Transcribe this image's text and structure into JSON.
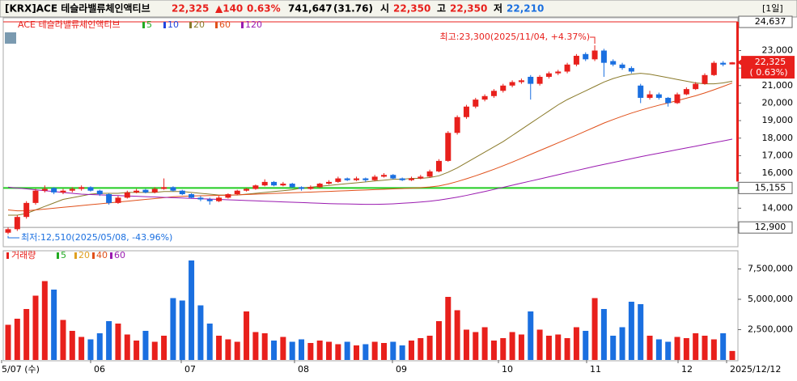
{
  "header": {
    "symbol": "[KRX]ACE 테슬라밸류체인액티브",
    "price": "22,325",
    "change": "▲140",
    "change_pct": "0.63%",
    "volume": "741,647",
    "volume_ratio": "(31.76)",
    "open_label": "시",
    "open": "22,350",
    "high_label": "고",
    "high": "22,350",
    "low_label": "저",
    "low": "22,210",
    "period": "[1일]"
  },
  "chart_data": {
    "type": "candlestick",
    "title": "ACE 테슬라밸류체인액티브",
    "up_color": "#e8201c",
    "down_color": "#1a6fe0",
    "ylim": [
      11800,
      24870
    ],
    "yticks": [
      {
        "value": 14000,
        "label": "14,000"
      },
      {
        "value": 15000,
        "label": "15,000"
      },
      {
        "value": 16000,
        "label": "16,000"
      },
      {
        "value": 17000,
        "label": "17,000"
      },
      {
        "value": 18000,
        "label": "18,000"
      },
      {
        "value": 19000,
        "label": "19,000"
      },
      {
        "value": 20000,
        "label": "20,000"
      },
      {
        "value": 21000,
        "label": "21,000"
      },
      {
        "value": 22000,
        "label": "22,000"
      },
      {
        "value": 23000,
        "label": "23,000"
      }
    ],
    "levels": [
      {
        "value": 24637,
        "label": "24,637",
        "color": "#e8201c"
      },
      {
        "value": 15155,
        "label": "15,155",
        "color": "#22cc22"
      },
      {
        "value": 12900,
        "label": "12,900",
        "color": "#999999"
      }
    ],
    "current": {
      "value": 22325,
      "label": "22,325",
      "pct_label": "( 0.63%)"
    },
    "annotations": {
      "high": "최고:23,300(2025/11/04, +4.37%)",
      "low": "최저:12,510(2025/05/08, -43.96%)"
    },
    "x_labels": [
      "5/07 (수)",
      "06",
      "07",
      "08",
      "09",
      "10",
      "11",
      "12",
      "2025/12/12"
    ],
    "candles": [
      [
        12600,
        12900,
        12510,
        12800
      ],
      [
        12800,
        13600,
        12700,
        13500
      ],
      [
        13500,
        14400,
        13400,
        14300
      ],
      [
        14300,
        15100,
        14200,
        15000
      ],
      [
        15000,
        15300,
        14900,
        15100
      ],
      [
        15150,
        15200,
        14800,
        14900
      ],
      [
        14900,
        15100,
        14800,
        15000
      ],
      [
        15000,
        15200,
        14900,
        15100
      ],
      [
        15100,
        15300,
        15000,
        15200
      ],
      [
        15200,
        15250,
        14950,
        15000
      ],
      [
        15000,
        15050,
        14700,
        14800
      ],
      [
        14800,
        14850,
        14200,
        14300
      ],
      [
        14300,
        14700,
        14250,
        14600
      ],
      [
        14600,
        15000,
        14550,
        14900
      ],
      [
        14900,
        15100,
        14850,
        15000
      ],
      [
        15050,
        15100,
        14850,
        14900
      ],
      [
        14900,
        15200,
        14850,
        15100
      ],
      [
        15100,
        15700,
        15050,
        15200
      ],
      [
        15200,
        15250,
        14950,
        15000
      ],
      [
        15000,
        15050,
        14750,
        14800
      ],
      [
        14800,
        14850,
        14550,
        14600
      ],
      [
        14600,
        14700,
        14400,
        14500
      ],
      [
        14500,
        14600,
        14200,
        14400
      ],
      [
        14400,
        14700,
        14350,
        14600
      ],
      [
        14600,
        14850,
        14550,
        14800
      ],
      [
        14800,
        15050,
        14750,
        15000
      ],
      [
        15000,
        15150,
        14950,
        15100
      ],
      [
        15100,
        15350,
        15050,
        15300
      ],
      [
        15300,
        15650,
        15250,
        15500
      ],
      [
        15500,
        15550,
        15250,
        15300
      ],
      [
        15300,
        15500,
        15250,
        15400
      ],
      [
        15400,
        15450,
        15150,
        15200
      ],
      [
        15200,
        15250,
        15000,
        15100
      ],
      [
        15100,
        15300,
        15050,
        15200
      ],
      [
        15200,
        15450,
        15150,
        15400
      ],
      [
        15400,
        15600,
        15350,
        15500
      ],
      [
        15500,
        15800,
        15450,
        15700
      ],
      [
        15700,
        15750,
        15550,
        15600
      ],
      [
        15600,
        15800,
        15550,
        15700
      ],
      [
        15700,
        15750,
        15500,
        15600
      ],
      [
        15600,
        15900,
        15550,
        15800
      ],
      [
        15800,
        16000,
        15750,
        15900
      ],
      [
        15900,
        15950,
        15650,
        15700
      ],
      [
        15700,
        15750,
        15550,
        15600
      ],
      [
        15600,
        15800,
        15550,
        15700
      ],
      [
        15700,
        15900,
        15650,
        15800
      ],
      [
        15800,
        16200,
        15750,
        16100
      ],
      [
        16100,
        16800,
        16050,
        16700
      ],
      [
        16700,
        18400,
        16650,
        18300
      ],
      [
        18300,
        19300,
        18200,
        19200
      ],
      [
        19200,
        19900,
        19100,
        19800
      ],
      [
        19800,
        20300,
        19700,
        20200
      ],
      [
        20200,
        20500,
        20100,
        20400
      ],
      [
        20400,
        20800,
        20300,
        20700
      ],
      [
        20700,
        21100,
        20600,
        21000
      ],
      [
        21000,
        21300,
        20900,
        21200
      ],
      [
        21200,
        21400,
        21100,
        21300
      ],
      [
        21500,
        21600,
        20200,
        21100
      ],
      [
        21100,
        21600,
        21000,
        21500
      ],
      [
        21500,
        21800,
        21400,
        21700
      ],
      [
        21700,
        21900,
        21600,
        21800
      ],
      [
        21800,
        22300,
        21700,
        22200
      ],
      [
        22200,
        22800,
        22100,
        22700
      ],
      [
        22800,
        22900,
        22400,
        22500
      ],
      [
        22500,
        23300,
        22400,
        23000
      ],
      [
        23000,
        23100,
        21500,
        22300
      ],
      [
        22400,
        22500,
        22100,
        22200
      ],
      [
        22200,
        22300,
        21900,
        22000
      ],
      [
        22000,
        22100,
        21700,
        21800
      ],
      [
        21000,
        21100,
        20000,
        20300
      ],
      [
        20300,
        20700,
        20200,
        20500
      ],
      [
        20500,
        20600,
        20200,
        20300
      ],
      [
        20300,
        20350,
        19800,
        20000
      ],
      [
        20000,
        20600,
        19950,
        20500
      ],
      [
        20500,
        20900,
        20450,
        20800
      ],
      [
        20800,
        21200,
        20750,
        21100
      ],
      [
        21100,
        21700,
        21050,
        21600
      ],
      [
        21600,
        22400,
        21550,
        22300
      ],
      [
        22300,
        22400,
        22100,
        22200
      ],
      [
        22210,
        22350,
        22210,
        22325
      ]
    ],
    "moving_averages": [
      {
        "name": "5",
        "color": "#22aa22"
      },
      {
        "name": "10",
        "color": "#2244dd"
      },
      {
        "name": "20",
        "color": "#8a7a2a",
        "values": [
          13600,
          13600,
          13700,
          13900,
          14100,
          14300,
          14500,
          14600,
          14700,
          14800,
          14850,
          14850,
          14850,
          14900,
          14900,
          14900,
          14900,
          14950,
          14950,
          14950,
          14900,
          14850,
          14800,
          14750,
          14750,
          14750,
          14800,
          14850,
          14900,
          14950,
          15000,
          15050,
          15150,
          15200,
          15250,
          15300,
          15350,
          15400,
          15450,
          15500,
          15550,
          15600,
          15650,
          15650,
          15700,
          15700,
          15750,
          15850,
          16050,
          16300,
          16600,
          16900,
          17200,
          17500,
          17800,
          18150,
          18500,
          18850,
          19200,
          19550,
          19900,
          20200,
          20450,
          20700,
          20950,
          21200,
          21400,
          21550,
          21650,
          21700,
          21650,
          21550,
          21450,
          21350,
          21250,
          21150,
          21100,
          21100,
          21150,
          21250
        ]
      },
      {
        "name": "60",
        "color": "#e0501a",
        "values": [
          13900,
          13850,
          13850,
          13900,
          13950,
          14000,
          14050,
          14100,
          14150,
          14200,
          14250,
          14300,
          14350,
          14400,
          14450,
          14500,
          14550,
          14600,
          14650,
          14680,
          14700,
          14710,
          14720,
          14730,
          14740,
          14760,
          14780,
          14800,
          14820,
          14840,
          14860,
          14880,
          14900,
          14920,
          14940,
          14960,
          14980,
          15000,
          15020,
          15040,
          15060,
          15080,
          15100,
          15120,
          15140,
          15170,
          15210,
          15270,
          15380,
          15520,
          15680,
          15850,
          16030,
          16220,
          16420,
          16630,
          16850,
          17070,
          17290,
          17510,
          17730,
          17950,
          18170,
          18400,
          18630,
          18860,
          19060,
          19250,
          19430,
          19590,
          19740,
          19880,
          20010,
          20140,
          20280,
          20420,
          20580,
          20760,
          20950,
          21150
        ]
      },
      {
        "name": "120",
        "color": "#9a1ab0",
        "values": [
          15200,
          15150,
          15100,
          15050,
          15000,
          14950,
          14900,
          14850,
          14800,
          14780,
          14760,
          14740,
          14720,
          14700,
          14680,
          14660,
          14640,
          14620,
          14600,
          14580,
          14560,
          14540,
          14520,
          14500,
          14480,
          14460,
          14440,
          14420,
          14400,
          14380,
          14360,
          14340,
          14320,
          14300,
          14280,
          14260,
          14250,
          14240,
          14230,
          14220,
          14220,
          14230,
          14250,
          14280,
          14310,
          14350,
          14400,
          14460,
          14540,
          14630,
          14730,
          14840,
          14950,
          15070,
          15190,
          15310,
          15430,
          15550,
          15670,
          15790,
          15910,
          16030,
          16150,
          16270,
          16390,
          16500,
          16610,
          16720,
          16830,
          16940,
          17040,
          17140,
          17240,
          17340,
          17440,
          17540,
          17640,
          17740,
          17840,
          17940
        ]
      }
    ],
    "volume": {
      "title": "거래량",
      "legend": [
        {
          "name": "5",
          "color": "#22aa22"
        },
        {
          "name": "20",
          "color": "#e0a020"
        },
        {
          "name": "40",
          "color": "#e0501a"
        },
        {
          "name": "60",
          "color": "#9a1ab0"
        }
      ],
      "ylim": [
        0,
        9000000
      ],
      "yticks": [
        {
          "value": 2500000,
          "label": "2,500,000"
        },
        {
          "value": 5000000,
          "label": "5,000,000"
        },
        {
          "value": 7500000,
          "label": "7,500,000"
        }
      ],
      "values": [
        2900000,
        3400000,
        4200000,
        5300000,
        6500000,
        5800000,
        3300000,
        2400000,
        1900000,
        1700000,
        2200000,
        3200000,
        3000000,
        2100000,
        1600000,
        2400000,
        1500000,
        2000000,
        5100000,
        4900000,
        8200000,
        4500000,
        3000000,
        2000000,
        1700000,
        1500000,
        4000000,
        2300000,
        2200000,
        1600000,
        1900000,
        1500000,
        1700000,
        1400000,
        1600000,
        1500000,
        1300000,
        1500000,
        1200000,
        1300000,
        1500000,
        1400000,
        1500000,
        1200000,
        1600000,
        1800000,
        2000000,
        3200000,
        5200000,
        4100000,
        2500000,
        2300000,
        2700000,
        1600000,
        1800000,
        2300000,
        2100000,
        4000000,
        2500000,
        2000000,
        2100000,
        1800000,
        2700000,
        2400000,
        5100000,
        4200000,
        2000000,
        2700000,
        4800000,
        4600000,
        2000000,
        1700000,
        1500000,
        1900000,
        1800000,
        2200000,
        2000000,
        1700000,
        2200000,
        741647
      ]
    }
  }
}
